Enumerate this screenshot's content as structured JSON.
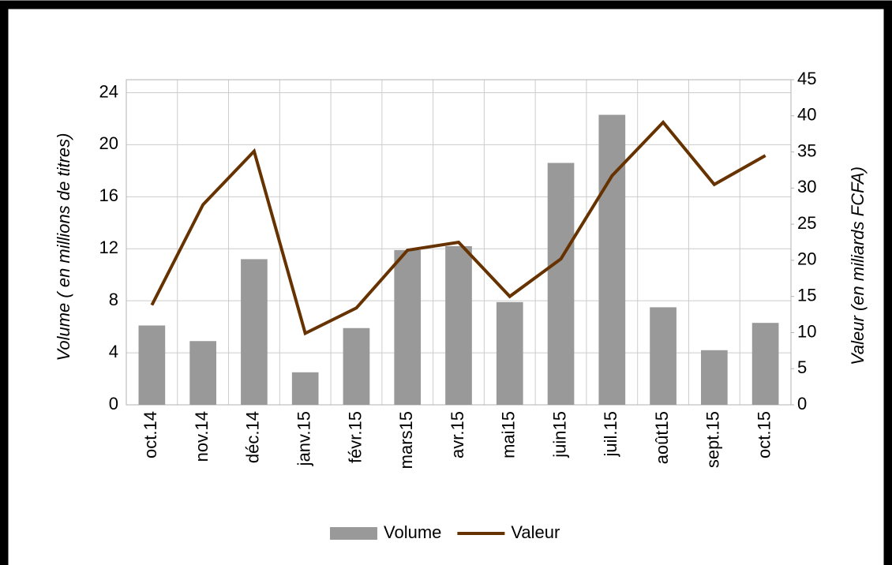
{
  "chart_data": {
    "type": "bar_line",
    "categories": [
      "oct.14",
      "nov.14",
      "déc.14",
      "janv.15",
      "févr.15",
      "mars15",
      "avr.15",
      "mai15",
      "juin15",
      "juil.15",
      "août15",
      "sept.15",
      "oct.15"
    ],
    "series": [
      {
        "name": "Volume",
        "type": "bar",
        "color": "#999999",
        "values": [
          6.1,
          4.9,
          11.2,
          2.5,
          5.9,
          11.9,
          12.2,
          7.9,
          18.6,
          22.3,
          7.5,
          4.2,
          6.3
        ]
      },
      {
        "name": "Valeur",
        "type": "line",
        "axis": "y2",
        "color": "#663300",
        "values": [
          13.8,
          27.7,
          35.1,
          9.9,
          13.4,
          21.4,
          22.5,
          15.0,
          20.2,
          31.7,
          39.1,
          30.5,
          34.5
        ]
      }
    ],
    "ylabel": "Volume ( en millions de titres)",
    "y2label": "Valeur (en miliards FCFA)",
    "ylim": [
      0,
      25
    ],
    "yticks": [
      0,
      4,
      8,
      12,
      16,
      20,
      24
    ],
    "y2lim": [
      0,
      45
    ],
    "y2ticks": [
      0,
      5,
      10,
      15,
      20,
      25,
      30,
      35,
      40,
      45
    ],
    "grid": true,
    "legend": "bottom"
  }
}
